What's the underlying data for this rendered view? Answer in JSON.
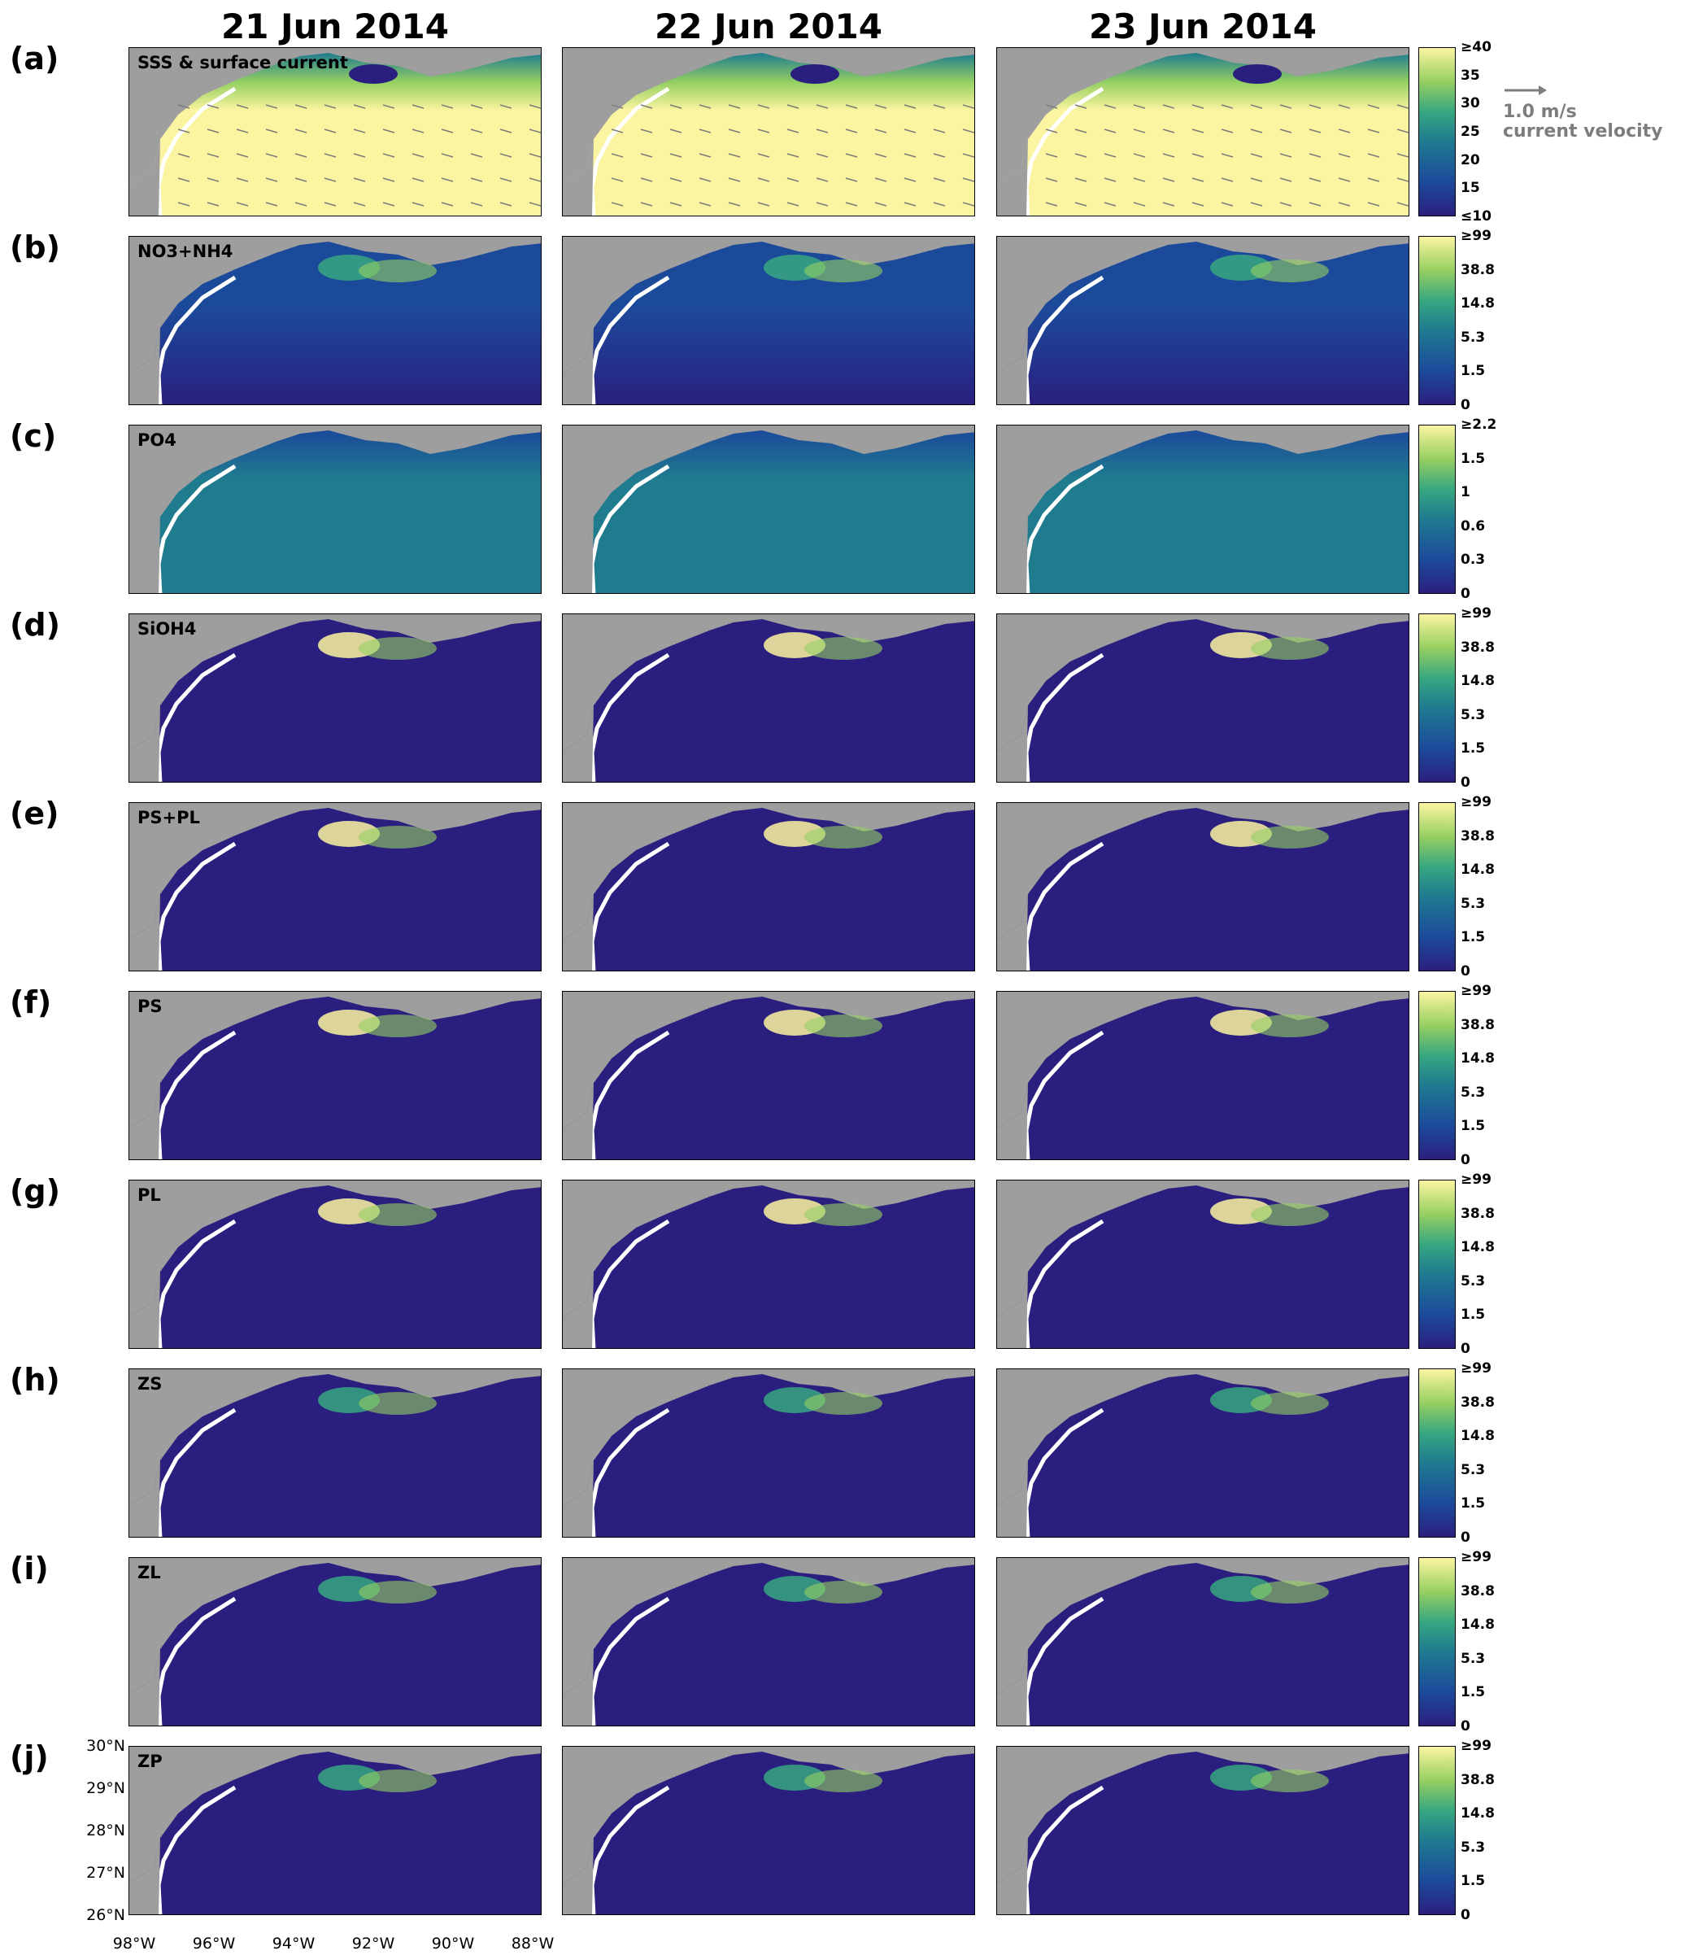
{
  "columns": [
    "21 Jun 2014",
    "22 Jun 2014",
    "23 Jun 2014"
  ],
  "rows": [
    {
      "label": "(a)",
      "var": "SSS & surface current",
      "ticks": [
        "≥40",
        "35",
        "30",
        "25",
        "20",
        "15",
        "≤10"
      ]
    },
    {
      "label": "(b)",
      "var": "NO3+NH4",
      "ticks": [
        "≥99",
        "38.8",
        "14.8",
        "5.3",
        "1.5",
        "0"
      ]
    },
    {
      "label": "(c)",
      "var": "PO4",
      "ticks": [
        "≥2.2",
        "1.5",
        "1",
        "0.6",
        "0.3",
        "0"
      ]
    },
    {
      "label": "(d)",
      "var": "SiOH4",
      "ticks": [
        "≥99",
        "38.8",
        "14.8",
        "5.3",
        "1.5",
        "0"
      ]
    },
    {
      "label": "(e)",
      "var": "PS+PL",
      "ticks": [
        "≥99",
        "38.8",
        "14.8",
        "5.3",
        "1.5",
        "0"
      ]
    },
    {
      "label": "(f)",
      "var": "PS",
      "ticks": [
        "≥99",
        "38.8",
        "14.8",
        "5.3",
        "1.5",
        "0"
      ]
    },
    {
      "label": "(g)",
      "var": "PL",
      "ticks": [
        "≥99",
        "38.8",
        "14.8",
        "5.3",
        "1.5",
        "0"
      ]
    },
    {
      "label": "(h)",
      "var": "ZS",
      "ticks": [
        "≥99",
        "38.8",
        "14.8",
        "5.3",
        "1.5",
        "0"
      ]
    },
    {
      "label": "(i)",
      "var": "ZL",
      "ticks": [
        "≥99",
        "38.8",
        "14.8",
        "5.3",
        "1.5",
        "0"
      ]
    },
    {
      "label": "(j)",
      "var": "ZP",
      "ticks": [
        "≥99",
        "38.8",
        "14.8",
        "5.3",
        "1.5",
        "0"
      ]
    }
  ],
  "legend": {
    "speed": "1.0 m/s",
    "caption": "current velocity"
  },
  "lat_ticks": [
    "30°N",
    "29°N",
    "28°N",
    "27°N",
    "26°N"
  ],
  "lon_ticks": [
    "98°W",
    "96°W",
    "94°W",
    "92°W",
    "90°W",
    "88°W"
  ],
  "colors": {
    "land": "#9e9e9e",
    "low": "#2a1f7e",
    "high": "#fbf4a0",
    "arrow": "#7d7d7d"
  }
}
